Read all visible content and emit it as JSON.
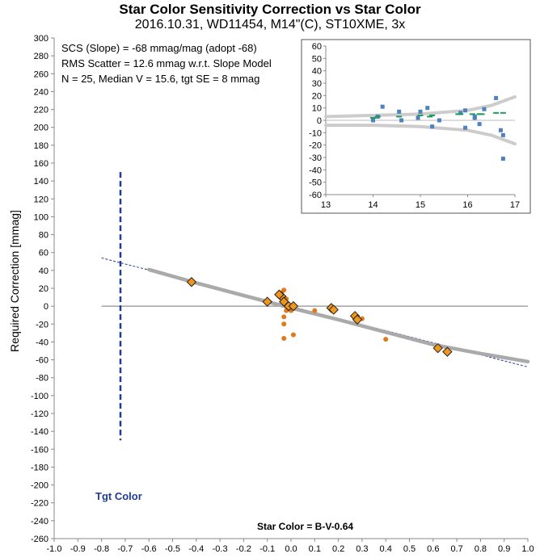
{
  "title": "Star Color Sensitivity Correction vs Star Color",
  "subtitle": "2016.10.31, WD11454, M14\"(C), ST10XME, 3x",
  "stats": [
    "SCS (Slope)  =  -68 mmag/mag (adopt -68)",
    "RMS Scatter = 12.6 mmag w.r.t. Slope Model",
    "N = 25,  Median V = 15.6, tgt SE = 8 mmag"
  ],
  "tgt_color_label": "Tgt Color",
  "chart_data": [
    {
      "type": "scatter",
      "title": "",
      "xlabel": "Star Color = B-V-0.64",
      "ylabel": "Required Correction [mmag]",
      "xlim": [
        -1.0,
        1.0
      ],
      "ylim": [
        -260,
        300
      ],
      "xticks": [
        -1.0,
        -0.9,
        -0.8,
        -0.7,
        -0.6,
        -0.5,
        -0.4,
        -0.3,
        -0.2,
        -0.1,
        0.0,
        0.1,
        0.2,
        0.3,
        0.4,
        0.5,
        0.6,
        0.7,
        0.8,
        0.9,
        1.0
      ],
      "xtick_labels": [
        "-1.0",
        "-0.9",
        "-0.8",
        "-0.7",
        "-0.6",
        "-0.5",
        "-0.4",
        "-0.3",
        "-0.2",
        "-0.1",
        "0.0",
        "0.1",
        "0.2",
        "0.3",
        "0.4",
        "0.5",
        "0.6",
        "0.7",
        "0.8",
        "0.9",
        "1.0"
      ],
      "yticks": [
        300,
        280,
        260,
        240,
        220,
        200,
        180,
        160,
        140,
        120,
        100,
        80,
        60,
        40,
        20,
        0,
        -20,
        -40,
        -60,
        -80,
        -100,
        -120,
        -140,
        -160,
        -180,
        -200,
        -220,
        -240,
        -260
      ],
      "grid": false,
      "series": [
        {
          "marker": "diamond",
          "color": "#f0961c",
          "points": [
            [
              -0.42,
              27
            ],
            [
              -0.1,
              5
            ],
            [
              -0.04,
              11
            ],
            [
              -0.05,
              13
            ],
            [
              -0.03,
              5
            ],
            [
              -0.01,
              0
            ],
            [
              0.01,
              0
            ],
            [
              0.17,
              -2
            ],
            [
              0.18,
              -4
            ],
            [
              0.27,
              -11
            ],
            [
              0.28,
              -15
            ],
            [
              0.62,
              -47
            ],
            [
              0.66,
              -51
            ]
          ]
        },
        {
          "marker": "dot",
          "color": "#e07a1a",
          "points": [
            [
              -0.03,
              18
            ],
            [
              -0.02,
              8
            ],
            [
              -0.02,
              -5
            ],
            [
              -0.03,
              -12
            ],
            [
              -0.03,
              -20
            ],
            [
              -0.03,
              -36
            ],
            [
              0.0,
              -5
            ],
            [
              0.01,
              -32
            ],
            [
              0.1,
              -5
            ],
            [
              0.3,
              -14
            ],
            [
              0.4,
              -37
            ],
            [
              -0.04,
              15
            ]
          ]
        },
        {
          "type": "line",
          "style": "thick-gray",
          "color": "#aaaaaa",
          "points": [
            [
              -0.6,
              41
            ],
            [
              -0.4,
              26
            ],
            [
              -0.2,
              12
            ],
            [
              0.0,
              -2
            ],
            [
              0.2,
              -15
            ],
            [
              0.4,
              -29
            ],
            [
              0.6,
              -43
            ],
            [
              0.8,
              -53
            ],
            [
              1.0,
              -62
            ]
          ]
        },
        {
          "type": "line",
          "style": "dashed-blue",
          "color": "#1f3c99",
          "points": [
            [
              -0.8,
              54
            ],
            [
              1.0,
              -68
            ]
          ]
        },
        {
          "type": "line",
          "style": "zero-line",
          "color": "#888888",
          "points": [
            [
              -0.8,
              0
            ],
            [
              1.0,
              0
            ]
          ]
        },
        {
          "type": "line",
          "style": "target-color",
          "color": "#1f3c99",
          "points": [
            [
              -0.72,
              150
            ],
            [
              -0.72,
              -150
            ]
          ]
        }
      ]
    },
    {
      "type": "scatter",
      "title": "",
      "xlabel": "",
      "ylabel": "",
      "xlim": [
        13,
        17
      ],
      "ylim": [
        -60,
        60
      ],
      "xticks": [
        13,
        14,
        15,
        16,
        17
      ],
      "yticks": [
        60,
        50,
        40,
        30,
        20,
        10,
        0,
        -10,
        -20,
        -30,
        -40,
        -50,
        -60
      ],
      "grid": false,
      "series": [
        {
          "marker": "square",
          "color": "#4f81bd",
          "points": [
            [
              14.0,
              0
            ],
            [
              14.2,
              11
            ],
            [
              14.55,
              7
            ],
            [
              14.6,
              0
            ],
            [
              14.95,
              2
            ],
            [
              15.0,
              7
            ],
            [
              15.15,
              10
            ],
            [
              15.25,
              -5
            ],
            [
              15.4,
              0
            ],
            [
              15.85,
              6
            ],
            [
              15.95,
              8
            ],
            [
              15.95,
              -6
            ],
            [
              16.15,
              2
            ],
            [
              16.15,
              3
            ],
            [
              16.25,
              -3
            ],
            [
              16.35,
              9
            ],
            [
              16.6,
              18
            ],
            [
              16.7,
              -8
            ],
            [
              16.75,
              -12
            ],
            [
              16.75,
              -31
            ],
            [
              14.1,
              3
            ]
          ]
        },
        {
          "marker": "dash",
          "color": "#1e9a5f",
          "points": [
            [
              14.0,
              2
            ],
            [
              14.1,
              3
            ],
            [
              14.55,
              3
            ],
            [
              15.0,
              4
            ],
            [
              15.2,
              3
            ],
            [
              15.25,
              4
            ],
            [
              15.8,
              5
            ],
            [
              15.85,
              5
            ],
            [
              16.1,
              5
            ],
            [
              16.25,
              5
            ],
            [
              16.3,
              5
            ],
            [
              16.6,
              6
            ],
            [
              16.75,
              6
            ]
          ]
        },
        {
          "type": "line",
          "style": "envelope",
          "color": "#cccccc",
          "points": [
            [
              13.0,
              3
            ],
            [
              14.0,
              4
            ],
            [
              15.0,
              5
            ],
            [
              16.0,
              8
            ],
            [
              16.5,
              12
            ],
            [
              17.0,
              19
            ]
          ]
        },
        {
          "type": "line",
          "style": "envelope",
          "color": "#cccccc",
          "points": [
            [
              13.0,
              -4
            ],
            [
              14.0,
              -4
            ],
            [
              15.0,
              -5
            ],
            [
              16.0,
              -8
            ],
            [
              16.5,
              -12
            ],
            [
              17.0,
              -19
            ]
          ]
        }
      ]
    }
  ]
}
